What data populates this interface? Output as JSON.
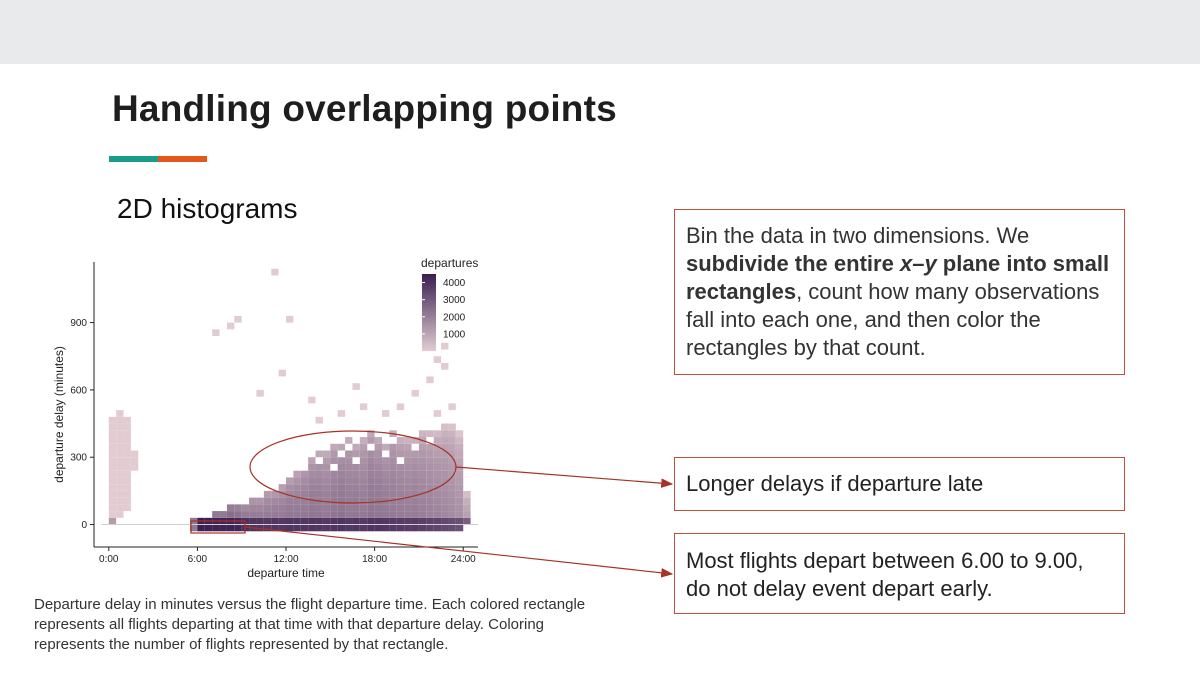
{
  "slide": {
    "title": "Handling overlapping points",
    "subtitle": "2D histograms",
    "accent_colors": [
      "#1a9c8c",
      "#e2581b"
    ]
  },
  "callouts": {
    "main": {
      "part1": "Bin the data in two dimensions. We ",
      "bold_a": "subdivide the entire ",
      "bold_x": "x",
      "bold_dash": "–",
      "bold_y": "y",
      "bold_b": " plane into small rectangles",
      "part2": ", count how many observations fall into each one, and then color the rectangles by that count."
    },
    "late": "Longer delays if departure late",
    "early": "Most flights depart between 6.00 to 9.00, do not delay event depart early."
  },
  "caption": "Departure delay in minutes versus the flight departure time. Each colored rectangle represents all flights departing at that time with that departure delay. Coloring represents the number of flights represented by that rectangle.",
  "colors": {
    "callout_border": "#c0503a",
    "annotation": "#a83226",
    "fill_low": "#e2ccd2",
    "fill_high": "#3b1e50"
  },
  "chart_data": {
    "type": "heatmap",
    "xlabel": "departure time",
    "ylabel": "departure delay (minutes)",
    "x_ticks": [
      "0:00",
      "6:00",
      "12:00",
      "18:00",
      "24:00"
    ],
    "x_tick_values": [
      0,
      6,
      12,
      18,
      24
    ],
    "y_ticks": [
      "0",
      "300",
      "600",
      "900"
    ],
    "y_tick_values": [
      0,
      300,
      600,
      900
    ],
    "xlim": [
      -1,
      25
    ],
    "ylim": [
      -100,
      1170
    ],
    "bin_width_hours": 0.5,
    "bin_height_minutes": 30,
    "legend": {
      "title": "departures",
      "labels": [
        "4000",
        "3000",
        "2000",
        "1000"
      ],
      "values": [
        4000,
        3000,
        2000,
        1000
      ],
      "position": "top-right"
    },
    "count_range": [
      1,
      4500
    ],
    "columns": [
      {
        "x": 0.0,
        "ymin": 0,
        "ymax": 480,
        "count": 10
      },
      {
        "x": 0.5,
        "ymin": 30,
        "ymax": 510,
        "count": 8
      },
      {
        "x": 1.0,
        "ymin": 60,
        "ymax": 480,
        "count": 6
      },
      {
        "x": 1.5,
        "ymin": 240,
        "ymax": 330,
        "count": 4
      },
      {
        "x": 5.5,
        "ymin": -30,
        "ymax": 30,
        "count": 60
      },
      {
        "x": 6.0,
        "ymin": -30,
        "ymax": 30,
        "count": 4200
      },
      {
        "x": 6.5,
        "ymin": -30,
        "ymax": 30,
        "count": 3800
      },
      {
        "x": 7.0,
        "ymin": -30,
        "ymax": 60,
        "count": 3500
      },
      {
        "x": 7.5,
        "ymin": -30,
        "ymax": 60,
        "count": 3300
      },
      {
        "x": 8.0,
        "ymin": -30,
        "ymax": 90,
        "count": 3600
      },
      {
        "x": 8.5,
        "ymin": -30,
        "ymax": 90,
        "count": 3000
      },
      {
        "x": 9.0,
        "ymin": -30,
        "ymax": 90,
        "count": 2000
      },
      {
        "x": 9.5,
        "ymin": -30,
        "ymax": 120,
        "count": 1500
      },
      {
        "x": 10.0,
        "ymin": -30,
        "ymax": 120,
        "count": 1400
      },
      {
        "x": 10.5,
        "ymin": -30,
        "ymax": 150,
        "count": 1300
      },
      {
        "x": 11.0,
        "ymin": -30,
        "ymax": 150,
        "count": 1500
      },
      {
        "x": 11.5,
        "ymin": -30,
        "ymax": 180,
        "count": 1300
      },
      {
        "x": 12.0,
        "ymin": -30,
        "ymax": 210,
        "count": 1500
      },
      {
        "x": 12.5,
        "ymin": -30,
        "ymax": 240,
        "count": 1400
      },
      {
        "x": 13.0,
        "ymin": -30,
        "ymax": 270,
        "count": 1400
      },
      {
        "x": 13.5,
        "ymin": -30,
        "ymax": 300,
        "count": 1600
      },
      {
        "x": 14.0,
        "ymin": -30,
        "ymax": 330,
        "count": 1400
      },
      {
        "x": 14.5,
        "ymin": -30,
        "ymax": 330,
        "count": 1200
      },
      {
        "x": 15.0,
        "ymin": -30,
        "ymax": 360,
        "count": 1500
      },
      {
        "x": 15.5,
        "ymin": -30,
        "ymax": 360,
        "count": 1700
      },
      {
        "x": 16.0,
        "ymin": -30,
        "ymax": 390,
        "count": 1300
      },
      {
        "x": 16.5,
        "ymin": -30,
        "ymax": 360,
        "count": 1400
      },
      {
        "x": 17.0,
        "ymin": -30,
        "ymax": 390,
        "count": 1200
      },
      {
        "x": 17.5,
        "ymin": -30,
        "ymax": 420,
        "count": 1600
      },
      {
        "x": 18.0,
        "ymin": -30,
        "ymax": 390,
        "count": 1500
      },
      {
        "x": 18.5,
        "ymin": -30,
        "ymax": 360,
        "count": 1300
      },
      {
        "x": 19.0,
        "ymin": -30,
        "ymax": 420,
        "count": 1200
      },
      {
        "x": 19.5,
        "ymin": -30,
        "ymax": 390,
        "count": 1100
      },
      {
        "x": 20.0,
        "ymin": -30,
        "ymax": 390,
        "count": 1000
      },
      {
        "x": 20.5,
        "ymin": -30,
        "ymax": 390,
        "count": 1100
      },
      {
        "x": 21.0,
        "ymin": -30,
        "ymax": 420,
        "count": 900
      },
      {
        "x": 21.5,
        "ymin": -30,
        "ymax": 420,
        "count": 800
      },
      {
        "x": 22.0,
        "ymin": -30,
        "ymax": 420,
        "count": 700
      },
      {
        "x": 22.5,
        "ymin": -30,
        "ymax": 450,
        "count": 600
      },
      {
        "x": 23.0,
        "ymin": -30,
        "ymax": 450,
        "count": 500
      },
      {
        "x": 23.5,
        "ymin": -30,
        "ymax": 420,
        "count": 400
      },
      {
        "x": 24.0,
        "ymin": 0,
        "ymax": 150,
        "count": 200
      }
    ],
    "outlier_bins": [
      {
        "x": 7.0,
        "y": 840
      },
      {
        "x": 8.0,
        "y": 870
      },
      {
        "x": 8.5,
        "y": 900
      },
      {
        "x": 11.0,
        "y": 1110
      },
      {
        "x": 12.0,
        "y": 900
      },
      {
        "x": 11.5,
        "y": 660
      },
      {
        "x": 10.0,
        "y": 570
      },
      {
        "x": 13.5,
        "y": 540
      },
      {
        "x": 15.5,
        "y": 480
      },
      {
        "x": 16.5,
        "y": 600
      },
      {
        "x": 17.0,
        "y": 510
      },
      {
        "x": 19.5,
        "y": 510
      },
      {
        "x": 20.5,
        "y": 570
      },
      {
        "x": 21.5,
        "y": 630
      },
      {
        "x": 22.0,
        "y": 720
      },
      {
        "x": 22.5,
        "y": 780
      },
      {
        "x": 22.5,
        "y": 690
      },
      {
        "x": 14.0,
        "y": 450
      },
      {
        "x": 18.5,
        "y": 480
      },
      {
        "x": 22.0,
        "y": 480
      },
      {
        "x": 23.0,
        "y": 510
      }
    ],
    "empty_bins": [
      {
        "x": 14.0,
        "y": 270
      },
      {
        "x": 15.0,
        "y": 240
      },
      {
        "x": 15.5,
        "y": 300
      },
      {
        "x": 16.5,
        "y": 270
      },
      {
        "x": 17.5,
        "y": 330
      },
      {
        "x": 18.5,
        "y": 300
      },
      {
        "x": 19.5,
        "y": 270
      },
      {
        "x": 20.5,
        "y": 330
      },
      {
        "x": 16.0,
        "y": 330
      },
      {
        "x": 19.0,
        "y": 360
      },
      {
        "x": 21.5,
        "y": 360
      },
      {
        "x": 13.0,
        "y": 240
      }
    ]
  }
}
